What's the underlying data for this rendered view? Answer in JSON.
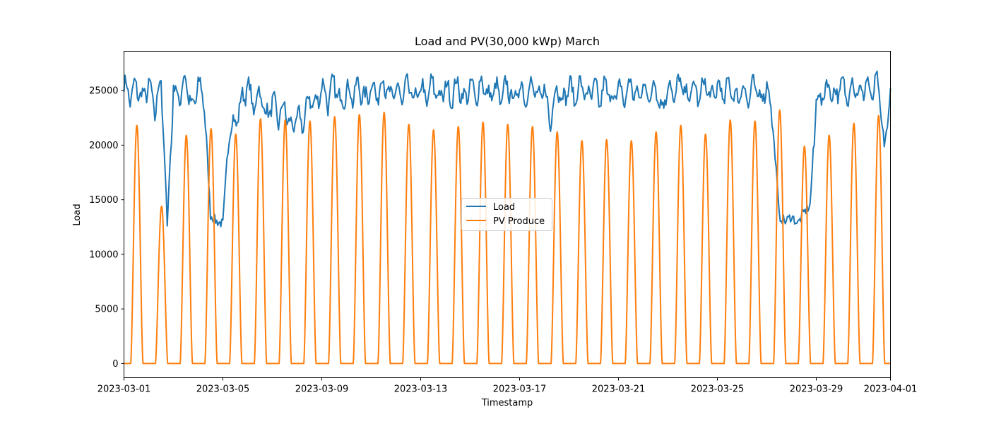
{
  "chart_data": {
    "type": "line",
    "title": "Load and PV(30,000 kWp) March",
    "xlabel": "Timestamp",
    "ylabel": "Load",
    "x_range": [
      "2023-03-01",
      "2023-04-01"
    ],
    "x_ticks": [
      "2023-03-01",
      "2023-03-05",
      "2023-03-09",
      "2023-03-13",
      "2023-03-17",
      "2023-03-21",
      "2023-03-25",
      "2023-03-29",
      "2023-04-01"
    ],
    "ylim": [
      -1300,
      28600
    ],
    "y_ticks": [
      0,
      5000,
      10000,
      15000,
      20000,
      25000
    ],
    "grid": false,
    "legend_position": "center",
    "series": [
      {
        "name": "Load",
        "color": "#1f77b4",
        "points": [
          [
            "2023-03-01 00:00",
            25500
          ],
          [
            "2023-03-01 06:00",
            24500
          ],
          [
            "2023-03-01 12:00",
            25400
          ],
          [
            "2023-03-01 18:00",
            24200
          ],
          [
            "2023-03-02 00:00",
            25600
          ],
          [
            "2023-03-02 06:00",
            23200
          ],
          [
            "2023-03-02 12:00",
            26000
          ],
          [
            "2023-03-02 18:00",
            13000
          ],
          [
            "2023-03-03 00:00",
            25000
          ],
          [
            "2023-03-03 06:00",
            24400
          ],
          [
            "2023-03-03 12:00",
            26200
          ],
          [
            "2023-03-03 18:00",
            23000
          ],
          [
            "2023-03-04 00:00",
            25700
          ],
          [
            "2023-03-04 06:00",
            24000
          ],
          [
            "2023-03-04 12:00",
            13600
          ],
          [
            "2023-03-04 18:00",
            13000
          ],
          [
            "2023-03-05 00:00",
            12800
          ],
          [
            "2023-03-05 06:00",
            21500
          ],
          [
            "2023-03-05 12:00",
            22000
          ],
          [
            "2023-03-05 18:00",
            24000
          ],
          [
            "2023-03-06 00:00",
            25500
          ],
          [
            "2023-03-06 06:00",
            23500
          ],
          [
            "2023-03-06 12:00",
            25000
          ],
          [
            "2023-03-06 18:00",
            22500
          ],
          [
            "2023-03-07 00:00",
            24000
          ],
          [
            "2023-03-07 06:00",
            22500
          ],
          [
            "2023-03-07 12:00",
            23500
          ],
          [
            "2023-03-07 18:00",
            21500
          ],
          [
            "2023-03-08 00:00",
            22500
          ],
          [
            "2023-03-08 06:00",
            22000
          ],
          [
            "2023-03-08 12:00",
            24500
          ],
          [
            "2023-03-08 18:00",
            23500
          ],
          [
            "2023-03-09 00:00",
            25500
          ],
          [
            "2023-03-09 06:00",
            24000
          ],
          [
            "2023-03-09 12:00",
            25800
          ],
          [
            "2023-03-09 18:00",
            23800
          ],
          [
            "2023-03-10 00:00",
            25000
          ],
          [
            "2023-03-10 06:00",
            24500
          ],
          [
            "2023-03-10 12:00",
            25500
          ],
          [
            "2023-03-10 18:00",
            24000
          ],
          [
            "2023-03-11 00:00",
            25500
          ],
          [
            "2023-03-11 06:00",
            24500
          ],
          [
            "2023-03-11 12:00",
            26000
          ],
          [
            "2023-03-11 18:00",
            24200
          ],
          [
            "2023-03-12 00:00",
            25200
          ],
          [
            "2023-03-12 06:00",
            24300
          ],
          [
            "2023-03-12 12:00",
            25600
          ],
          [
            "2023-03-12 18:00",
            24000
          ],
          [
            "2023-03-13 00:00",
            25300
          ],
          [
            "2023-03-13 06:00",
            24200
          ],
          [
            "2023-03-13 12:00",
            25800
          ],
          [
            "2023-03-13 18:00",
            24100
          ],
          [
            "2023-03-14 00:00",
            25400
          ],
          [
            "2023-03-14 06:00",
            24300
          ],
          [
            "2023-03-14 12:00",
            25700
          ],
          [
            "2023-03-14 18:00",
            24000
          ],
          [
            "2023-03-15 00:00",
            25500
          ],
          [
            "2023-03-15 06:00",
            24400
          ],
          [
            "2023-03-15 12:00",
            25900
          ],
          [
            "2023-03-15 18:00",
            24200
          ],
          [
            "2023-03-16 00:00",
            25300
          ],
          [
            "2023-03-16 06:00",
            24200
          ],
          [
            "2023-03-16 12:00",
            25600
          ],
          [
            "2023-03-16 18:00",
            24000
          ],
          [
            "2023-03-17 00:00",
            25400
          ],
          [
            "2023-03-17 06:00",
            24300
          ],
          [
            "2023-03-17 12:00",
            25800
          ],
          [
            "2023-03-17 18:00",
            24100
          ],
          [
            "2023-03-18 00:00",
            25200
          ],
          [
            "2023-03-18 06:00",
            22000
          ],
          [
            "2023-03-18 12:00",
            25600
          ],
          [
            "2023-03-18 18:00",
            24000
          ],
          [
            "2023-03-19 00:00",
            25500
          ],
          [
            "2023-03-19 06:00",
            24300
          ],
          [
            "2023-03-19 12:00",
            25700
          ],
          [
            "2023-03-19 18:00",
            24200
          ],
          [
            "2023-03-20 00:00",
            25400
          ],
          [
            "2023-03-20 06:00",
            24100
          ],
          [
            "2023-03-20 12:00",
            25600
          ],
          [
            "2023-03-20 18:00",
            24000
          ],
          [
            "2023-03-21 00:00",
            25300
          ],
          [
            "2023-03-21 06:00",
            24200
          ],
          [
            "2023-03-21 12:00",
            25800
          ],
          [
            "2023-03-21 18:00",
            24100
          ],
          [
            "2023-03-22 00:00",
            25500
          ],
          [
            "2023-03-22 06:00",
            24300
          ],
          [
            "2023-03-22 12:00",
            25700
          ],
          [
            "2023-03-22 18:00",
            23000
          ],
          [
            "2023-03-23 00:00",
            25600
          ],
          [
            "2023-03-23 06:00",
            24400
          ],
          [
            "2023-03-23 12:00",
            26000
          ],
          [
            "2023-03-23 18:00",
            24200
          ],
          [
            "2023-03-24 00:00",
            25400
          ],
          [
            "2023-03-24 06:00",
            24300
          ],
          [
            "2023-03-24 12:00",
            25800
          ],
          [
            "2023-03-24 18:00",
            24100
          ],
          [
            "2023-03-25 00:00",
            25500
          ],
          [
            "2023-03-25 06:00",
            24400
          ],
          [
            "2023-03-25 12:00",
            25700
          ],
          [
            "2023-03-25 18:00",
            24000
          ],
          [
            "2023-03-26 00:00",
            25300
          ],
          [
            "2023-03-26 06:00",
            24200
          ],
          [
            "2023-03-26 12:00",
            25600
          ],
          [
            "2023-03-26 18:00",
            24100
          ],
          [
            "2023-03-27 00:00",
            25600
          ],
          [
            "2023-03-27 06:00",
            22000
          ],
          [
            "2023-03-27 12:00",
            13500
          ],
          [
            "2023-03-27 18:00",
            13000
          ],
          [
            "2023-03-28 00:00",
            13500
          ],
          [
            "2023-03-28 06:00",
            12800
          ],
          [
            "2023-03-28 12:00",
            13800
          ],
          [
            "2023-03-28 18:00",
            14500
          ],
          [
            "2023-03-29 00:00",
            24000
          ],
          [
            "2023-03-29 06:00",
            24500
          ],
          [
            "2023-03-29 12:00",
            25500
          ],
          [
            "2023-03-29 18:00",
            24300
          ],
          [
            "2023-03-30 00:00",
            25600
          ],
          [
            "2023-03-30 06:00",
            24500
          ],
          [
            "2023-03-30 12:00",
            25800
          ],
          [
            "2023-03-30 18:00",
            24400
          ],
          [
            "2023-03-31 00:00",
            25700
          ],
          [
            "2023-03-31 06:00",
            24600
          ],
          [
            "2023-03-31 12:00",
            25900
          ],
          [
            "2023-03-31 18:00",
            19500
          ],
          [
            "2023-04-01 00:00",
            25000
          ]
        ]
      },
      {
        "name": "PV Produce",
        "color": "#ff7f0e",
        "daily_peaks": [
          [
            "2023-03-01",
            21800
          ],
          [
            "2023-03-02",
            14400
          ],
          [
            "2023-03-03",
            20900
          ],
          [
            "2023-03-04",
            21500
          ],
          [
            "2023-03-05",
            21000
          ],
          [
            "2023-03-06",
            22400
          ],
          [
            "2023-03-07",
            22300
          ],
          [
            "2023-03-08",
            22200
          ],
          [
            "2023-03-09",
            22600
          ],
          [
            "2023-03-10",
            22800
          ],
          [
            "2023-03-11",
            23000
          ],
          [
            "2023-03-12",
            21900
          ],
          [
            "2023-03-13",
            21400
          ],
          [
            "2023-03-14",
            21700
          ],
          [
            "2023-03-15",
            22100
          ],
          [
            "2023-03-16",
            21900
          ],
          [
            "2023-03-17",
            21700
          ],
          [
            "2023-03-18",
            21200
          ],
          [
            "2023-03-19",
            20400
          ],
          [
            "2023-03-20",
            20500
          ],
          [
            "2023-03-21",
            20400
          ],
          [
            "2023-03-22",
            21200
          ],
          [
            "2023-03-23",
            21800
          ],
          [
            "2023-03-24",
            21000
          ],
          [
            "2023-03-25",
            22300
          ],
          [
            "2023-03-26",
            22200
          ],
          [
            "2023-03-27",
            23200
          ],
          [
            "2023-03-28",
            19900
          ],
          [
            "2023-03-29",
            20900
          ],
          [
            "2023-03-30",
            22000
          ],
          [
            "2023-03-31",
            22700
          ]
        ]
      }
    ]
  }
}
